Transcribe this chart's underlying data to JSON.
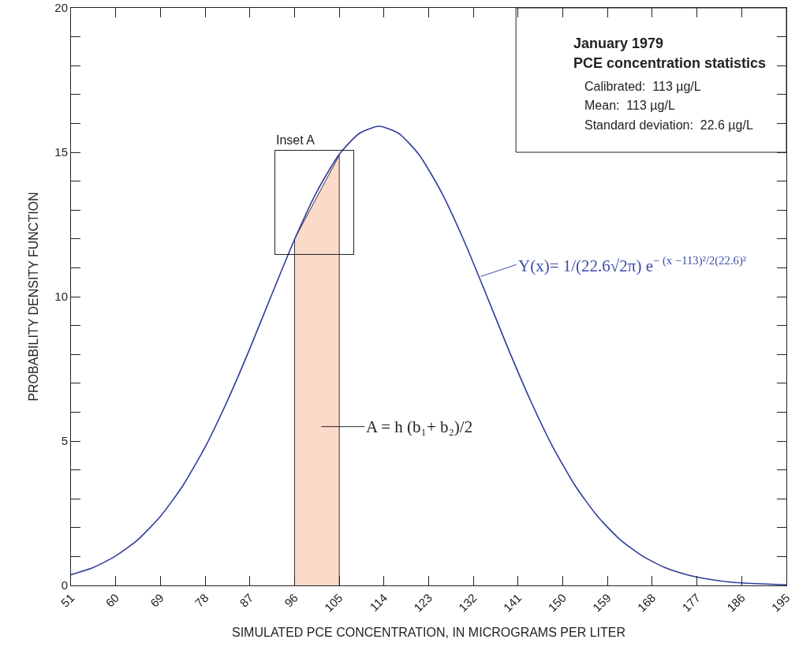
{
  "chart_data": {
    "type": "line",
    "xlabel": "SIMULATED PCE CONCENTRATION, IN MICROGRAMS PER LITER",
    "ylabel": "PROBABILITY DENSITY FUNCTION",
    "xlim": [
      51,
      195
    ],
    "xticks": [
      51,
      60,
      69,
      78,
      87,
      96,
      105,
      114,
      123,
      132,
      141,
      150,
      159,
      168,
      177,
      186,
      195
    ],
    "ylim": [
      0,
      20
    ],
    "yticks": [
      0,
      {
        "value": 1,
        "label": null
      },
      {
        "value": 2,
        "label": null
      },
      {
        "value": 3,
        "label": null
      },
      {
        "value": 4,
        "label": null
      },
      5,
      {
        "value": 6,
        "label": null
      },
      {
        "value": 7,
        "label": null
      },
      {
        "value": 8,
        "label": null
      },
      {
        "value": 9,
        "label": null
      },
      10,
      {
        "value": 11,
        "label": null
      },
      {
        "value": 12,
        "label": null
      },
      {
        "value": 13,
        "label": null
      },
      {
        "value": 14,
        "label": null
      },
      15,
      {
        "value": 16,
        "label": null
      },
      {
        "value": 17,
        "label": null
      },
      {
        "value": 18,
        "label": null
      },
      {
        "value": 19,
        "label": null
      },
      20
    ],
    "grid": false,
    "series": [
      {
        "type": "area",
        "color": "#fbdac9",
        "x": [
          96,
          96,
          105,
          105
        ],
        "values": [
          0,
          12.0,
          14.9,
          0
        ]
      },
      {
        "color": "#2e3d9a",
        "x": [
          51,
          55.5,
          60,
          64.5,
          69,
          73.5,
          78,
          82.5,
          87,
          91.5,
          96,
          100.5,
          105,
          109,
          113,
          117,
          121,
          125.5,
          130,
          134.5,
          139,
          143.5,
          148,
          152.5,
          157,
          161.5,
          166,
          170.5,
          175,
          179.5,
          184,
          189,
          195
        ],
        "values": [
          0.37,
          0.62,
          1.02,
          1.59,
          2.39,
          3.45,
          4.79,
          6.4,
          8.2,
          10.11,
          11.98,
          13.64,
          14.93,
          15.65,
          15.9,
          15.65,
          14.93,
          13.64,
          11.98,
          10.11,
          8.2,
          6.4,
          4.79,
          3.45,
          2.39,
          1.59,
          1.02,
          0.62,
          0.37,
          0.21,
          0.11,
          0.06,
          0.02
        ]
      }
    ],
    "annotations": [
      "Inset A",
      "January 1979",
      "PCE concentration statistics",
      "Calibrated:  113 µg/L",
      "Mean:  113 µg/L",
      "Standard deviation:  22.6 µg/L",
      {
        "text": "Y(x)= 1/(22.6√2π) e$^{− (x −113)²/2(22.6)²}$",
        "x": 133.5,
        "y": 10.7
      },
      "A = h (b₁+ b₂)/2"
    ]
  }
}
